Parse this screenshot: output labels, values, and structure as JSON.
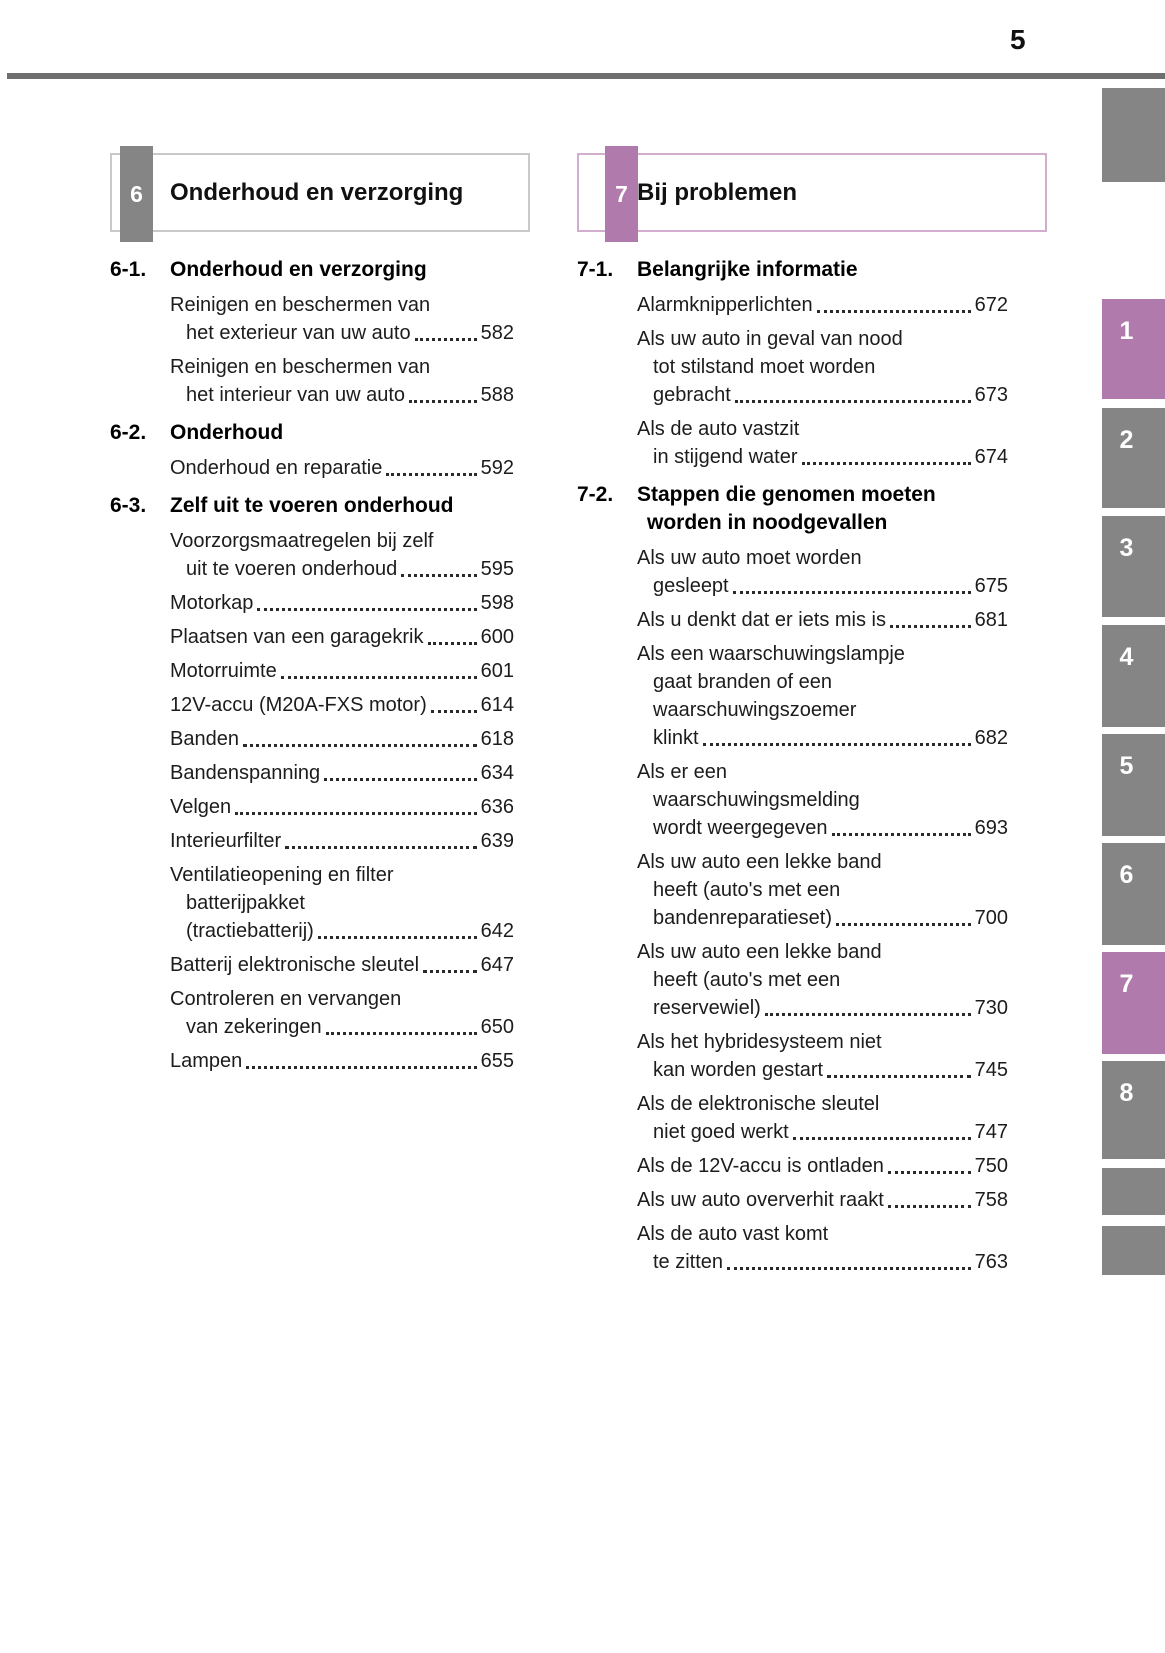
{
  "page": {
    "number": "5"
  },
  "colors": {
    "accent_purple": "#b07aac",
    "tab_gray": "#858585",
    "header_border_gray": "#c9c9c9",
    "header_border_purple": "#d2aed0",
    "rule_gray": "#6e6e6e"
  },
  "sections": [
    {
      "badge": "6",
      "badge_color": "#858585",
      "border_color": "#c9c9c9",
      "title": "Onderhoud en verzorging",
      "subsections": [
        {
          "number": "6-1.",
          "title_lines": [
            "Onderhoud en verzorging"
          ],
          "entries": [
            {
              "lines": [
                "Reinigen en beschermen van",
                "het exterieur van uw auto"
              ],
              "page": "582"
            },
            {
              "lines": [
                "Reinigen en beschermen van",
                "het interieur van uw auto"
              ],
              "page": "588"
            }
          ]
        },
        {
          "number": "6-2.",
          "title_lines": [
            "Onderhoud"
          ],
          "entries": [
            {
              "lines": [
                "Onderhoud en reparatie"
              ],
              "page": "592"
            }
          ]
        },
        {
          "number": "6-3.",
          "title_lines": [
            "Zelf uit te voeren onderhoud"
          ],
          "entries": [
            {
              "lines": [
                "Voorzorgsmaatregelen bij zelf",
                "uit te voeren onderhoud"
              ],
              "page": "595"
            },
            {
              "lines": [
                "Motorkap"
              ],
              "page": "598"
            },
            {
              "lines": [
                "Plaatsen van een garagekrik"
              ],
              "page": "600"
            },
            {
              "lines": [
                "Motorruimte"
              ],
              "page": "601"
            },
            {
              "lines": [
                "12V-accu (M20A-FXS motor)"
              ],
              "page": "614"
            },
            {
              "lines": [
                "Banden"
              ],
              "page": "618"
            },
            {
              "lines": [
                "Bandenspanning"
              ],
              "page": "634"
            },
            {
              "lines": [
                "Velgen"
              ],
              "page": "636"
            },
            {
              "lines": [
                "Interieurfilter"
              ],
              "page": "639"
            },
            {
              "lines": [
                "Ventilatieopening en filter",
                "batterijpakket",
                "(tractiebatterij)"
              ],
              "page": "642"
            },
            {
              "lines": [
                "Batterij elektronische sleutel"
              ],
              "page": "647"
            },
            {
              "lines": [
                "Controleren en vervangen",
                "van zekeringen"
              ],
              "page": "650"
            },
            {
              "lines": [
                "Lampen"
              ],
              "page": "655"
            }
          ]
        }
      ]
    },
    {
      "badge": "7",
      "badge_color": "#b07aac",
      "border_color": "#d2aed0",
      "title": "Bij problemen",
      "subsections": [
        {
          "number": "7-1.",
          "title_lines": [
            "Belangrijke informatie"
          ],
          "entries": [
            {
              "lines": [
                "Alarmknipperlichten"
              ],
              "page": "672"
            },
            {
              "lines": [
                "Als uw auto in geval van nood",
                "tot stilstand moet worden",
                "gebracht"
              ],
              "page": "673"
            },
            {
              "lines": [
                "Als de auto vastzit",
                "in stijgend water"
              ],
              "page": "674"
            }
          ]
        },
        {
          "number": "7-2.",
          "title_lines": [
            "Stappen die genomen moeten",
            "worden in noodgevallen"
          ],
          "entries": [
            {
              "lines": [
                "Als uw auto moet worden",
                "gesleept"
              ],
              "page": "675"
            },
            {
              "lines": [
                "Als u denkt dat er iets mis is"
              ],
              "page": "681"
            },
            {
              "lines": [
                "Als een waarschuwingslampje",
                "gaat branden of een",
                "waarschuwingszoemer",
                "klinkt"
              ],
              "page": "682"
            },
            {
              "lines": [
                "Als er een",
                "waarschuwingsmelding",
                "wordt weergegeven"
              ],
              "page": "693"
            },
            {
              "lines": [
                "Als uw auto een lekke band",
                "heeft (auto's met een",
                "bandenreparatieset)"
              ],
              "page": "700"
            },
            {
              "lines": [
                "Als uw auto een lekke band",
                "heeft (auto's met een",
                "reservewiel)"
              ],
              "page": "730"
            },
            {
              "lines": [
                "Als het hybridesysteem niet",
                "kan worden gestart"
              ],
              "page": "745"
            },
            {
              "lines": [
                "Als de elektronische sleutel",
                "niet goed werkt"
              ],
              "page": "747"
            },
            {
              "lines": [
                "Als de 12V-accu is ontladen"
              ],
              "page": "750"
            },
            {
              "lines": [
                "Als uw auto oververhit raakt"
              ],
              "page": "758"
            },
            {
              "lines": [
                "Als de auto vast komt",
                "te zitten"
              ],
              "page": "763"
            }
          ]
        }
      ]
    }
  ],
  "side_tabs": [
    {
      "label": "",
      "active": false
    },
    {
      "label": "1",
      "active": true
    },
    {
      "label": "2",
      "active": false
    },
    {
      "label": "3",
      "active": false
    },
    {
      "label": "4",
      "active": false
    },
    {
      "label": "5",
      "active": false
    },
    {
      "label": "6",
      "active": false
    },
    {
      "label": "7",
      "active": true
    },
    {
      "label": "8",
      "active": false
    },
    {
      "label": "",
      "active": false
    },
    {
      "label": "",
      "active": false
    }
  ]
}
